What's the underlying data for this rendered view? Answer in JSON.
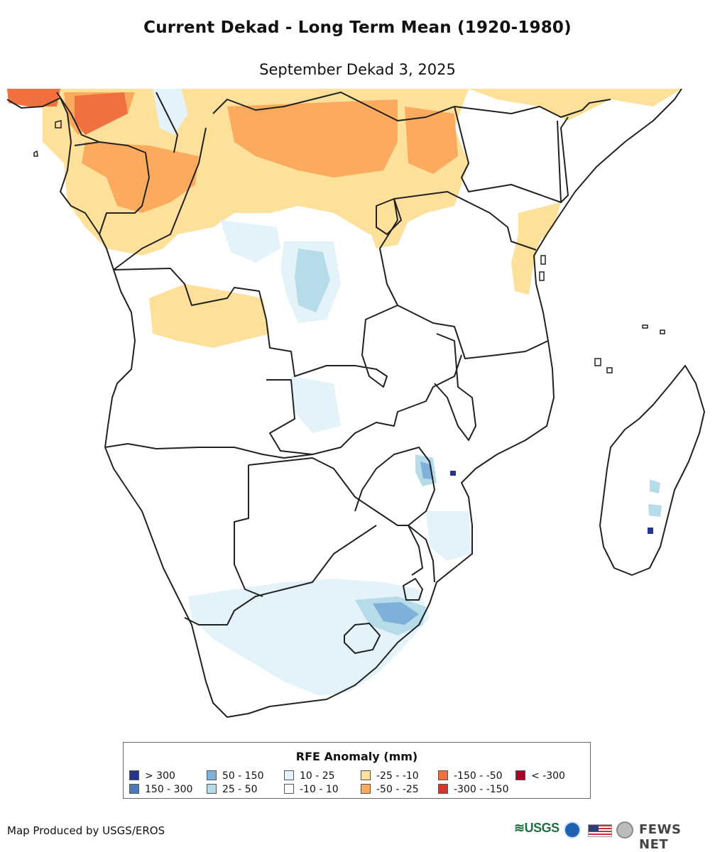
{
  "title": "Current Dekad - Long Term Mean (1920-1980)",
  "subtitle": "September Dekad 3, 2025",
  "legend": {
    "title": "RFE Anomaly (mm)",
    "items": [
      {
        "label": "> 300",
        "color": "#27348b"
      },
      {
        "label": "150 - 300",
        "color": "#4c79b8"
      },
      {
        "label": "50 - 150",
        "color": "#7fb0d9"
      },
      {
        "label": "25 - 50",
        "color": "#b6dbe9"
      },
      {
        "label": "10 - 25",
        "color": "#e4f3f9"
      },
      {
        "label": "-10 - 10",
        "color": "#ffffff"
      },
      {
        "label": "-25 - -10",
        "color": "#fde09a"
      },
      {
        "label": "-50 - -25",
        "color": "#fcaa5e"
      },
      {
        "label": "-150 - -50",
        "color": "#f1703f"
      },
      {
        "label": "-300 - -150",
        "color": "#d7362b"
      },
      {
        "label": "< -300",
        "color": "#a50026"
      }
    ]
  },
  "credit": "Map Produced by USGS/EROS",
  "logos": {
    "usgs": "≋USGS",
    "fews": "FEWS NET"
  },
  "icons": [
    "usgs-logo",
    "noaa-logo-icon",
    "us-flag-icon",
    "state-department-seal-icon"
  ]
}
